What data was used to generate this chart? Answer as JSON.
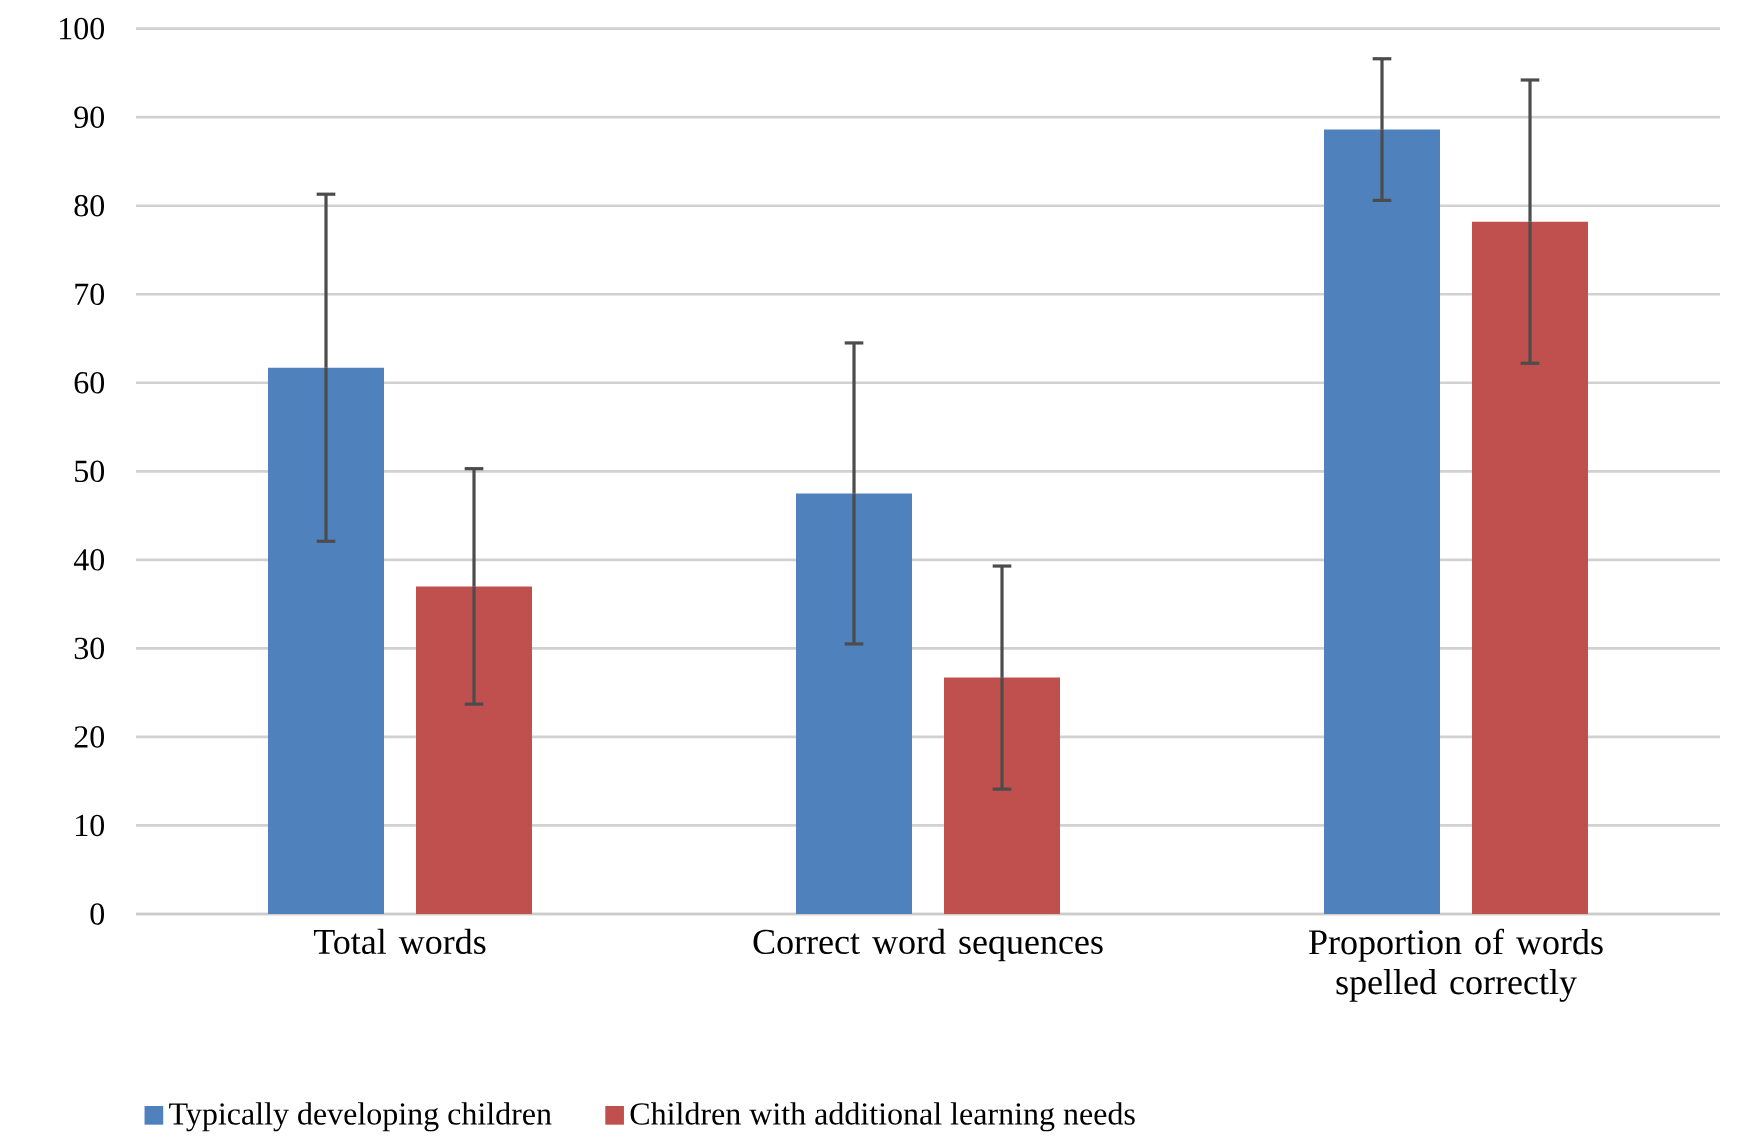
{
  "chart_data": {
    "type": "bar",
    "categories": [
      "Total words",
      "Correct word sequences",
      "Proportion of words spelled correctly"
    ],
    "series": [
      {
        "name": "Typically developing children",
        "color": "#4f81bd",
        "values": [
          61.7,
          47.5,
          88.6
        ],
        "errors": [
          19.6,
          17,
          8
        ]
      },
      {
        "name": "Children with additional learning needs",
        "color": "#c0504d",
        "values": [
          37,
          26.7,
          78.2
        ],
        "errors": [
          13.3,
          12.6,
          16
        ]
      }
    ],
    "ylim": [
      0,
      100
    ],
    "yticks": [
      0,
      10,
      20,
      30,
      40,
      50,
      60,
      70,
      80,
      90,
      100
    ],
    "grid": "y",
    "legend": "bottom"
  }
}
